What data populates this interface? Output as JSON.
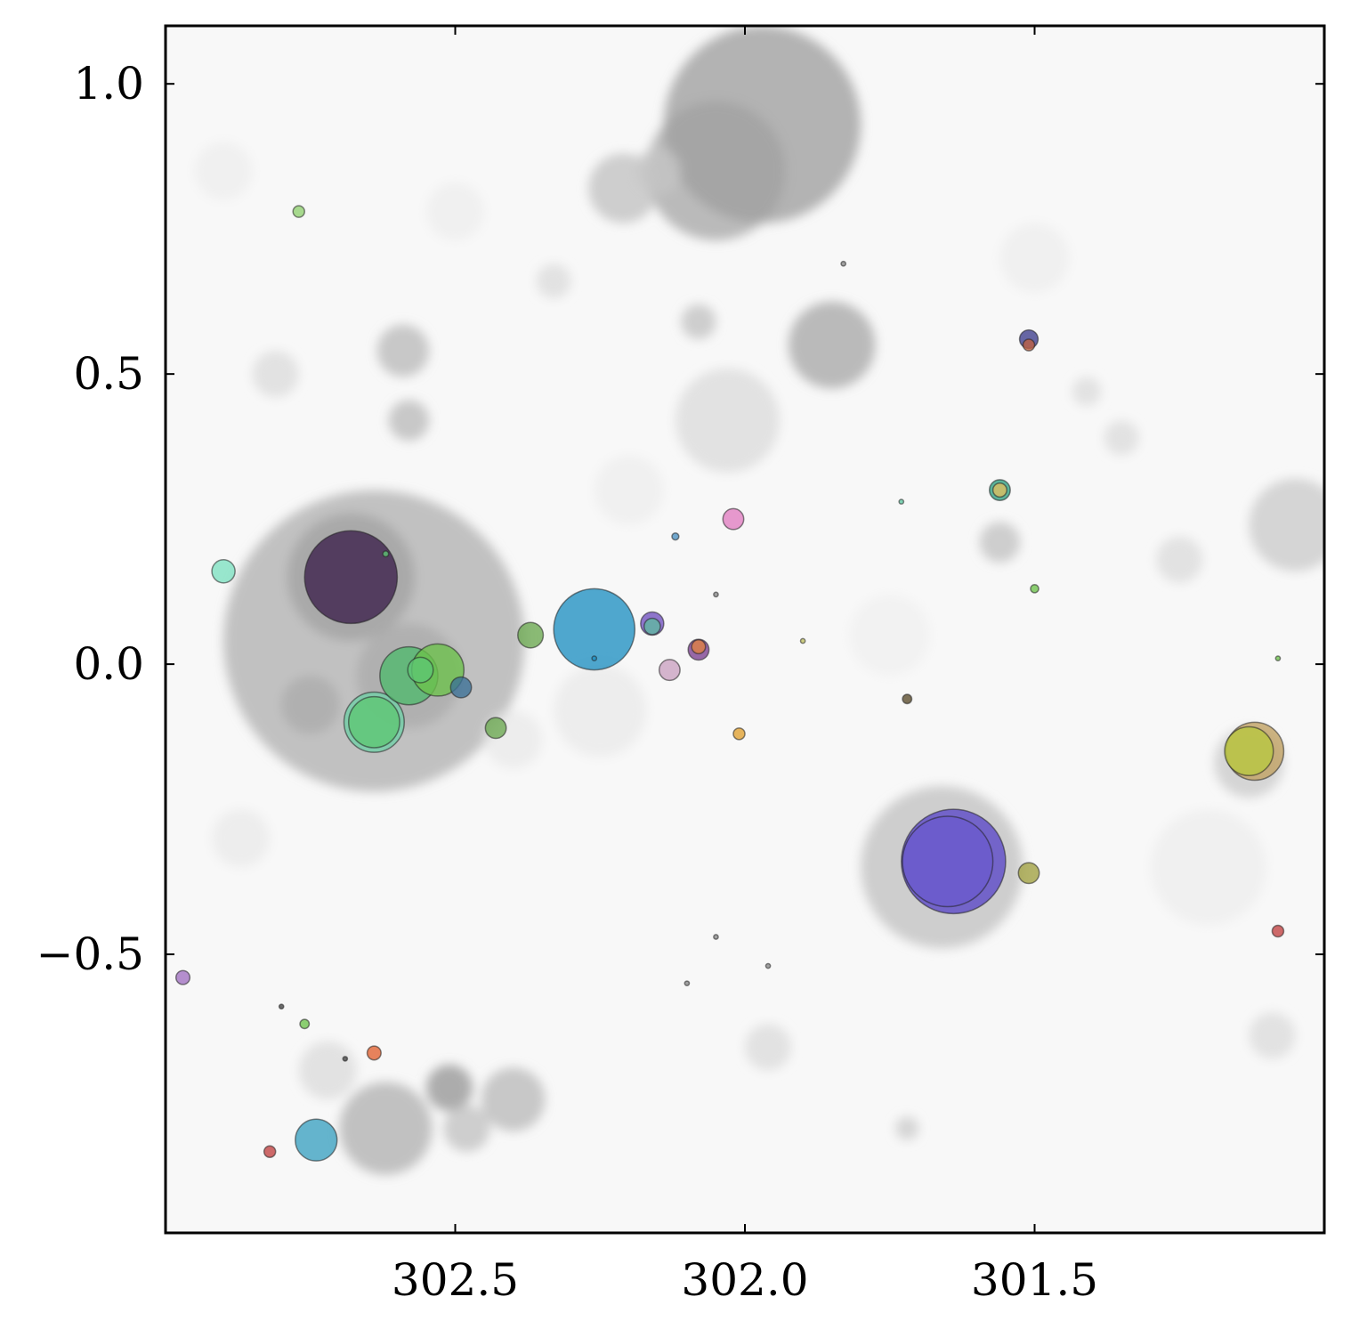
{
  "chart_data": {
    "type": "scatter",
    "title": "",
    "xlabel": "",
    "ylabel": "",
    "xlim": [
      303.0,
      301.0
    ],
    "ylim": [
      -0.98,
      1.1
    ],
    "x_ticks": [
      302.5,
      302.0,
      301.5
    ],
    "x_tick_labels": [
      "302.5",
      "302.0",
      "301.5"
    ],
    "y_ticks": [
      1.0,
      0.5,
      0.0,
      -0.5
    ],
    "y_tick_labels": [
      "1.0",
      "0.5",
      "0.0",
      "−0.5"
    ],
    "x_axis_reversed": true,
    "grid": false,
    "legend": "none",
    "background_gray_blobs": [
      {
        "x": 301.97,
        "y": 0.93,
        "r": 0.17,
        "shade": 0.55
      },
      {
        "x": 302.05,
        "y": 0.85,
        "r": 0.12,
        "shade": 0.5
      },
      {
        "x": 302.21,
        "y": 0.82,
        "r": 0.06,
        "shade": 0.35
      },
      {
        "x": 301.85,
        "y": 0.55,
        "r": 0.075,
        "shade": 0.5
      },
      {
        "x": 302.03,
        "y": 0.42,
        "r": 0.09,
        "shade": 0.2
      },
      {
        "x": 302.64,
        "y": 0.04,
        "r": 0.26,
        "shade": 0.45
      },
      {
        "x": 302.68,
        "y": 0.15,
        "r": 0.11,
        "shade": 0.5
      },
      {
        "x": 302.58,
        "y": -0.02,
        "r": 0.09,
        "shade": 0.45
      },
      {
        "x": 302.75,
        "y": -0.07,
        "r": 0.05,
        "shade": 0.45
      },
      {
        "x": 302.59,
        "y": 0.54,
        "r": 0.045,
        "shade": 0.4
      },
      {
        "x": 302.58,
        "y": 0.42,
        "r": 0.035,
        "shade": 0.4
      },
      {
        "x": 302.81,
        "y": 0.5,
        "r": 0.04,
        "shade": 0.2
      },
      {
        "x": 301.66,
        "y": -0.35,
        "r": 0.14,
        "shade": 0.35
      },
      {
        "x": 301.56,
        "y": 0.21,
        "r": 0.035,
        "shade": 0.35
      },
      {
        "x": 301.05,
        "y": 0.24,
        "r": 0.08,
        "shade": 0.3
      },
      {
        "x": 301.13,
        "y": -0.17,
        "r": 0.06,
        "shade": 0.3
      },
      {
        "x": 302.62,
        "y": -0.8,
        "r": 0.08,
        "shade": 0.45
      },
      {
        "x": 302.51,
        "y": -0.73,
        "r": 0.04,
        "shade": 0.6
      },
      {
        "x": 302.4,
        "y": -0.75,
        "r": 0.055,
        "shade": 0.4
      },
      {
        "x": 302.48,
        "y": -0.8,
        "r": 0.04,
        "shade": 0.35
      },
      {
        "x": 302.72,
        "y": -0.7,
        "r": 0.05,
        "shade": 0.2
      },
      {
        "x": 301.96,
        "y": -0.66,
        "r": 0.04,
        "shade": 0.2
      },
      {
        "x": 302.08,
        "y": 0.59,
        "r": 0.03,
        "shade": 0.35
      },
      {
        "x": 301.72,
        "y": -0.8,
        "r": 0.02,
        "shade": 0.3
      },
      {
        "x": 301.35,
        "y": 0.39,
        "r": 0.03,
        "shade": 0.2
      },
      {
        "x": 301.41,
        "y": 0.47,
        "r": 0.025,
        "shade": 0.2
      },
      {
        "x": 301.25,
        "y": 0.18,
        "r": 0.04,
        "shade": 0.2
      },
      {
        "x": 301.09,
        "y": -0.64,
        "r": 0.04,
        "shade": 0.2
      },
      {
        "x": 302.87,
        "y": -0.3,
        "r": 0.05,
        "shade": 0.12
      },
      {
        "x": 302.4,
        "y": -0.13,
        "r": 0.05,
        "shade": 0.12
      },
      {
        "x": 302.15,
        "y": 0.85,
        "r": 0.04,
        "shade": 0.3
      },
      {
        "x": 302.33,
        "y": 0.66,
        "r": 0.03,
        "shade": 0.2
      },
      {
        "x": 302.9,
        "y": 0.85,
        "r": 0.05,
        "shade": 0.1
      },
      {
        "x": 301.2,
        "y": -0.35,
        "r": 0.1,
        "shade": 0.1
      },
      {
        "x": 302.25,
        "y": -0.08,
        "r": 0.08,
        "shade": 0.12
      },
      {
        "x": 301.5,
        "y": 0.7,
        "r": 0.06,
        "shade": 0.1
      },
      {
        "x": 302.2,
        "y": 0.3,
        "r": 0.06,
        "shade": 0.1
      },
      {
        "x": 301.75,
        "y": 0.05,
        "r": 0.07,
        "shade": 0.08
      },
      {
        "x": 302.5,
        "y": 0.78,
        "r": 0.05,
        "shade": 0.1
      }
    ],
    "points": [
      {
        "x": 302.68,
        "y": 0.15,
        "r": 0.08,
        "color": "#3b1f4a"
      },
      {
        "x": 302.64,
        "y": -0.1,
        "r": 0.052,
        "color": "#6fd0a6"
      },
      {
        "x": 302.64,
        "y": -0.1,
        "r": 0.044,
        "color": "#5ec773"
      },
      {
        "x": 302.58,
        "y": -0.02,
        "r": 0.05,
        "color": "#4eb86b"
      },
      {
        "x": 302.53,
        "y": -0.01,
        "r": 0.045,
        "color": "#6cc24a"
      },
      {
        "x": 302.56,
        "y": -0.01,
        "r": 0.022,
        "color": "#5ec773"
      },
      {
        "x": 302.49,
        "y": -0.04,
        "r": 0.018,
        "color": "#3a6f96"
      },
      {
        "x": 302.43,
        "y": -0.11,
        "r": 0.018,
        "color": "#6aa84f"
      },
      {
        "x": 302.26,
        "y": 0.06,
        "r": 0.07,
        "color": "#1f8fc1"
      },
      {
        "x": 302.37,
        "y": 0.05,
        "r": 0.022,
        "color": "#6aa84f"
      },
      {
        "x": 302.16,
        "y": 0.07,
        "r": 0.02,
        "color": "#6f4fbf"
      },
      {
        "x": 302.16,
        "y": 0.065,
        "r": 0.014,
        "color": "#5fb8a0"
      },
      {
        "x": 302.13,
        "y": -0.01,
        "r": 0.018,
        "color": "#c9a0c0"
      },
      {
        "x": 302.08,
        "y": 0.025,
        "r": 0.018,
        "color": "#7b3f8f"
      },
      {
        "x": 302.08,
        "y": 0.03,
        "r": 0.012,
        "color": "#e08040"
      },
      {
        "x": 302.02,
        "y": 0.25,
        "r": 0.018,
        "color": "#e07cc0"
      },
      {
        "x": 302.12,
        "y": 0.22,
        "r": 0.006,
        "color": "#4a90c0"
      },
      {
        "x": 302.01,
        "y": -0.12,
        "r": 0.01,
        "color": "#e0a030"
      },
      {
        "x": 302.26,
        "y": 0.01,
        "r": 0.004,
        "color": "#1f8fc1"
      },
      {
        "x": 302.9,
        "y": 0.16,
        "r": 0.02,
        "color": "#7ce0c0"
      },
      {
        "x": 302.77,
        "y": 0.78,
        "r": 0.01,
        "color": "#8fd070"
      },
      {
        "x": 302.62,
        "y": 0.19,
        "r": 0.005,
        "color": "#5ec773"
      },
      {
        "x": 301.51,
        "y": 0.56,
        "r": 0.016,
        "color": "#3c3c8c"
      },
      {
        "x": 301.51,
        "y": 0.55,
        "r": 0.01,
        "color": "#c06040"
      },
      {
        "x": 301.56,
        "y": 0.3,
        "r": 0.018,
        "color": "#2f9f80"
      },
      {
        "x": 301.56,
        "y": 0.3,
        "r": 0.012,
        "color": "#e0c060"
      },
      {
        "x": 301.5,
        "y": 0.13,
        "r": 0.007,
        "color": "#6cc24a"
      },
      {
        "x": 301.73,
        "y": 0.28,
        "r": 0.004,
        "color": "#5ec7a0"
      },
      {
        "x": 301.64,
        "y": -0.34,
        "r": 0.09,
        "color": "#5a46c8"
      },
      {
        "x": 301.65,
        "y": -0.34,
        "r": 0.078,
        "color": "#6a5acd"
      },
      {
        "x": 301.51,
        "y": -0.36,
        "r": 0.018,
        "color": "#a0a040"
      },
      {
        "x": 301.72,
        "y": -0.06,
        "r": 0.008,
        "color": "#5a4a2a"
      },
      {
        "x": 301.12,
        "y": -0.15,
        "r": 0.05,
        "color": "#c0a060"
      },
      {
        "x": 301.13,
        "y": -0.15,
        "r": 0.042,
        "color": "#b8c840"
      },
      {
        "x": 301.08,
        "y": 0.01,
        "r": 0.004,
        "color": "#6cc24a"
      },
      {
        "x": 301.08,
        "y": -0.46,
        "r": 0.01,
        "color": "#c04040"
      },
      {
        "x": 302.97,
        "y": -0.54,
        "r": 0.012,
        "color": "#a070c0"
      },
      {
        "x": 302.74,
        "y": -0.82,
        "r": 0.036,
        "color": "#3aa0c0"
      },
      {
        "x": 302.64,
        "y": -0.67,
        "r": 0.012,
        "color": "#e06030"
      },
      {
        "x": 302.76,
        "y": -0.62,
        "r": 0.008,
        "color": "#6cc24a"
      },
      {
        "x": 302.82,
        "y": -0.84,
        "r": 0.01,
        "color": "#c04040"
      },
      {
        "x": 302.8,
        "y": -0.59,
        "r": 0.004,
        "color": "#444444"
      },
      {
        "x": 302.69,
        "y": -0.68,
        "r": 0.004,
        "color": "#444444"
      },
      {
        "x": 302.05,
        "y": -0.47,
        "r": 0.004,
        "color": "#888888"
      },
      {
        "x": 302.1,
        "y": -0.55,
        "r": 0.004,
        "color": "#888888"
      },
      {
        "x": 301.96,
        "y": -0.52,
        "r": 0.004,
        "color": "#888888"
      },
      {
        "x": 301.83,
        "y": 0.69,
        "r": 0.004,
        "color": "#888888"
      },
      {
        "x": 302.05,
        "y": 0.12,
        "r": 0.004,
        "color": "#888888"
      },
      {
        "x": 301.9,
        "y": 0.04,
        "r": 0.004,
        "color": "#c0c060"
      }
    ]
  }
}
